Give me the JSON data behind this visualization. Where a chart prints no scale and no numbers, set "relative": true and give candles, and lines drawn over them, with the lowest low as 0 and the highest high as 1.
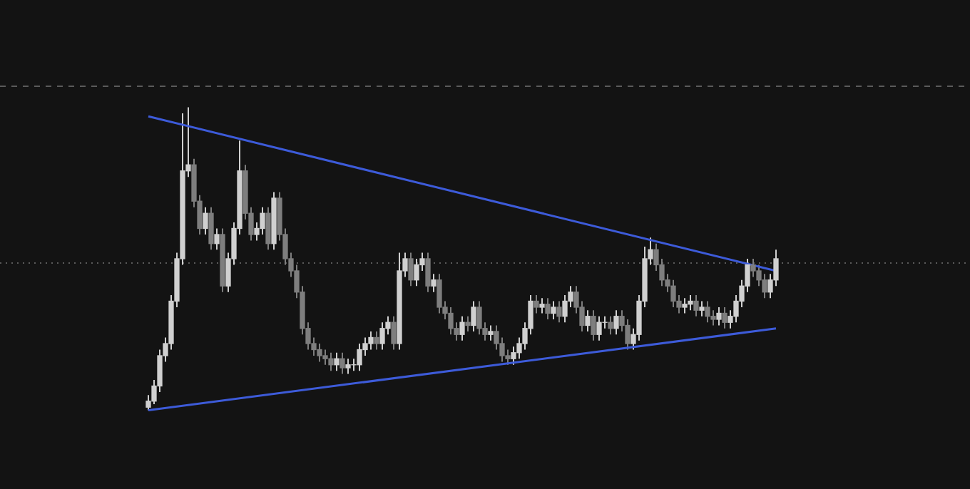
{
  "chart_data": {
    "type": "candlestick",
    "relative": true,
    "legend": false,
    "tick_labels": false,
    "grid": false,
    "colors": [
      "#d0d0d0",
      "#d0d0d0",
      "#d0d0d0",
      "#d0d0d0",
      "#d0d0d0",
      "#d0d0d0",
      "#d0d0d0",
      "#d0d0d0",
      "#7e7e7e",
      "#7e7e7e",
      "#d0d0d0",
      "#7e7e7e",
      "#d0d0d0",
      "#7e7e7e",
      "#d0d0d0",
      "#d0d0d0",
      "#d0d0d0",
      "#7e7e7e",
      "#7e7e7e",
      "#d0d0d0",
      "#d0d0d0",
      "#7e7e7e",
      "#d0d0d0",
      "#7e7e7e",
      "#7e7e7e",
      "#7e7e7e",
      "#7e7e7e",
      "#7e7e7e",
      "#7e7e7e",
      "#7e7e7e",
      "#7e7e7e",
      "#7e7e7e",
      "#7e7e7e",
      "#d0d0d0",
      "#7e7e7e",
      "#d0d0d0",
      "#d0d0d0",
      "#d0d0d0",
      "#d0d0d0",
      "#d0d0d0",
      "#7e7e7e",
      "#d0d0d0",
      "#d0d0d0",
      "#7e7e7e",
      "#d0d0d0",
      "#d0d0d0",
      "#7e7e7e",
      "#d0d0d0",
      "#d0d0d0",
      "#7e7e7e",
      "#d0d0d0",
      "#7e7e7e",
      "#7e7e7e",
      "#7e7e7e",
      "#7e7e7e",
      "#d0d0d0",
      "#7e7e7e",
      "#d0d0d0",
      "#7e7e7e",
      "#7e7e7e",
      "#d0d0d0",
      "#7e7e7e",
      "#7e7e7e",
      "#7e7e7e",
      "#d0d0d0",
      "#d0d0d0",
      "#d0d0d0",
      "#d0d0d0",
      "#7e7e7e",
      "#d0d0d0",
      "#7e7e7e",
      "#d0d0d0",
      "#7e7e7e",
      "#d0d0d0",
      "#d0d0d0",
      "#7e7e7e",
      "#7e7e7e",
      "#d0d0d0",
      "#7e7e7e",
      "#d0d0d0",
      "#d0d0d0",
      "#7e7e7e",
      "#d0d0d0",
      "#7e7e7e",
      "#7e7e7e",
      "#d0d0d0",
      "#d0d0d0",
      "#d0d0d0",
      "#d0d0d0",
      "#7e7e7e",
      "#7e7e7e",
      "#7e7e7e",
      "#7e7e7e",
      "#7e7e7e",
      "#d0d0d0",
      "#d0d0d0",
      "#7e7e7e",
      "#d0d0d0",
      "#7e7e7e",
      "#7e7e7e",
      "#d0d0d0",
      "#7e7e7e",
      "#d0d0d0",
      "#d0d0d0",
      "#d0d0d0",
      "#d0d0d0",
      "#7e7e7e",
      "#7e7e7e",
      "#7e7e7e",
      "#d0d0d0",
      "#d0d0d0"
    ],
    "series": [
      {
        "type": "line",
        "color": "#3d5bd9",
        "values": [
          0.97,
          null,
          null,
          null,
          null,
          null,
          null,
          null,
          null,
          null,
          null,
          null,
          null,
          null,
          null,
          null,
          null,
          null,
          null,
          null,
          null,
          null,
          null,
          null,
          null,
          null,
          null,
          null,
          null,
          null,
          null,
          null,
          null,
          null,
          null,
          null,
          null,
          null,
          null,
          null,
          null,
          null,
          null,
          null,
          null,
          null,
          null,
          null,
          null,
          null,
          null,
          null,
          null,
          null,
          null,
          null,
          null,
          null,
          null,
          null,
          null,
          null,
          null,
          null,
          null,
          null,
          null,
          null,
          null,
          null,
          null,
          null,
          null,
          null,
          null,
          null,
          null,
          null,
          null,
          null,
          null,
          null,
          null,
          null,
          null,
          null,
          null,
          null,
          null,
          null,
          null,
          null,
          null,
          null,
          null,
          null,
          null,
          null,
          null,
          null,
          null,
          null,
          null,
          null,
          null,
          null,
          null,
          null,
          null,
          null,
          0.46
        ]
      },
      {
        "type": "line",
        "color": "#3d5bd9",
        "values": [
          0,
          null,
          null,
          null,
          null,
          null,
          null,
          null,
          null,
          null,
          null,
          null,
          null,
          null,
          null,
          null,
          null,
          null,
          null,
          null,
          null,
          null,
          null,
          null,
          null,
          null,
          null,
          null,
          null,
          null,
          null,
          null,
          null,
          null,
          null,
          null,
          null,
          null,
          null,
          null,
          null,
          null,
          null,
          null,
          null,
          null,
          null,
          null,
          null,
          null,
          null,
          null,
          null,
          null,
          null,
          null,
          null,
          null,
          null,
          null,
          null,
          null,
          null,
          null,
          null,
          null,
          null,
          null,
          null,
          null,
          null,
          null,
          null,
          null,
          null,
          null,
          null,
          null,
          null,
          null,
          null,
          null,
          null,
          null,
          null,
          null,
          null,
          null,
          null,
          null,
          null,
          null,
          null,
          null,
          null,
          null,
          null,
          null,
          null,
          null,
          null,
          null,
          null,
          null,
          null,
          null,
          null,
          null,
          null,
          null,
          0.27
        ]
      }
    ],
    "ref_lines": [
      {
        "axis": "y",
        "value": 1.07,
        "color": "#5a5a5a",
        "line_style": "dashed"
      },
      {
        "axis": "y",
        "value": 0.49,
        "color": "#5a5a5a",
        "line_style": "dotted"
      }
    ],
    "categories": [
      null,
      null,
      null,
      null,
      null,
      null,
      null,
      null,
      null,
      null,
      null,
      null,
      null,
      null,
      null,
      null,
      null,
      null,
      null,
      null,
      null,
      null,
      null,
      null,
      null,
      null,
      null,
      null,
      null,
      null,
      null,
      null,
      null,
      null,
      null,
      null,
      null,
      null,
      null,
      null,
      null,
      null,
      null,
      null,
      null,
      null,
      null,
      null,
      null,
      null,
      null,
      null,
      null,
      null,
      null,
      null,
      null,
      null,
      null,
      null,
      null,
      null,
      null,
      null,
      null,
      null,
      null,
      null,
      null,
      null,
      null,
      null,
      null,
      null,
      null,
      null,
      null,
      null,
      null,
      null,
      null,
      null,
      null,
      null,
      null,
      null,
      null,
      null,
      null,
      null,
      null,
      null,
      null,
      null,
      null,
      null,
      null,
      null,
      null,
      null,
      null,
      null,
      null,
      null,
      null,
      null,
      null,
      null,
      null,
      null,
      null
    ],
    "ohlc": [
      [
        0.01,
        0.05,
        0,
        0.03
      ],
      [
        0.03,
        0.1,
        0.02,
        0.08
      ],
      [
        0.08,
        0.2,
        0.06,
        0.18
      ],
      [
        0.18,
        0.24,
        0.16,
        0.22
      ],
      [
        0.22,
        0.38,
        0.2,
        0.36
      ],
      [
        0.36,
        0.52,
        0.34,
        0.5
      ],
      [
        0.5,
        0.98,
        0.48,
        0.79
      ],
      [
        0.79,
        1,
        0.77,
        0.81
      ],
      [
        0.81,
        0.83,
        0.67,
        0.69
      ],
      [
        0.69,
        0.71,
        0.58,
        0.6
      ],
      [
        0.6,
        0.67,
        0.58,
        0.65
      ],
      [
        0.65,
        0.67,
        0.53,
        0.55
      ],
      [
        0.55,
        0.6,
        0.53,
        0.58
      ],
      [
        0.58,
        0.6,
        0.39,
        0.41
      ],
      [
        0.41,
        0.52,
        0.39,
        0.5
      ],
      [
        0.5,
        0.62,
        0.48,
        0.6
      ],
      [
        0.6,
        0.89,
        0.58,
        0.79
      ],
      [
        0.79,
        0.81,
        0.63,
        0.65
      ],
      [
        0.65,
        0.67,
        0.56,
        0.58
      ],
      [
        0.58,
        0.62,
        0.56,
        0.6
      ],
      [
        0.6,
        0.67,
        0.58,
        0.65
      ],
      [
        0.65,
        0.67,
        0.53,
        0.55
      ],
      [
        0.55,
        0.72,
        0.53,
        0.7
      ],
      [
        0.7,
        0.72,
        0.56,
        0.58
      ],
      [
        0.58,
        0.6,
        0.48,
        0.5
      ],
      [
        0.5,
        0.52,
        0.44,
        0.46
      ],
      [
        0.46,
        0.48,
        0.37,
        0.39
      ],
      [
        0.39,
        0.41,
        0.25,
        0.27
      ],
      [
        0.27,
        0.29,
        0.2,
        0.22
      ],
      [
        0.22,
        0.24,
        0.18,
        0.2
      ],
      [
        0.2,
        0.22,
        0.16,
        0.18
      ],
      [
        0.18,
        0.2,
        0.15,
        0.17
      ],
      [
        0.17,
        0.19,
        0.13,
        0.15
      ],
      [
        0.15,
        0.19,
        0.13,
        0.17
      ],
      [
        0.17,
        0.19,
        0.12,
        0.14
      ],
      [
        0.14,
        0.17,
        0.12,
        0.15
      ],
      [
        0.15,
        0.17,
        0.13,
        0.15
      ],
      [
        0.15,
        0.22,
        0.13,
        0.2
      ],
      [
        0.2,
        0.24,
        0.18,
        0.22
      ],
      [
        0.22,
        0.26,
        0.2,
        0.24
      ],
      [
        0.24,
        0.26,
        0.2,
        0.22
      ],
      [
        0.22,
        0.29,
        0.2,
        0.27
      ],
      [
        0.27,
        0.31,
        0.25,
        0.29
      ],
      [
        0.29,
        0.31,
        0.2,
        0.22
      ],
      [
        0.22,
        0.52,
        0.2,
        0.46
      ],
      [
        0.46,
        0.52,
        0.44,
        0.5
      ],
      [
        0.5,
        0.52,
        0.41,
        0.43
      ],
      [
        0.43,
        0.5,
        0.41,
        0.48
      ],
      [
        0.48,
        0.52,
        0.46,
        0.5
      ],
      [
        0.5,
        0.52,
        0.39,
        0.41
      ],
      [
        0.41,
        0.45,
        0.39,
        0.43
      ],
      [
        0.43,
        0.45,
        0.32,
        0.34
      ],
      [
        0.34,
        0.36,
        0.3,
        0.32
      ],
      [
        0.32,
        0.34,
        0.25,
        0.27
      ],
      [
        0.27,
        0.29,
        0.23,
        0.25
      ],
      [
        0.25,
        0.31,
        0.23,
        0.29
      ],
      [
        0.29,
        0.31,
        0.26,
        0.28
      ],
      [
        0.28,
        0.36,
        0.26,
        0.34
      ],
      [
        0.34,
        0.36,
        0.25,
        0.27
      ],
      [
        0.27,
        0.29,
        0.23,
        0.25
      ],
      [
        0.25,
        0.28,
        0.23,
        0.26
      ],
      [
        0.26,
        0.28,
        0.2,
        0.22
      ],
      [
        0.22,
        0.24,
        0.16,
        0.18
      ],
      [
        0.18,
        0.2,
        0.15,
        0.17
      ],
      [
        0.17,
        0.21,
        0.15,
        0.19
      ],
      [
        0.19,
        0.24,
        0.17,
        0.22
      ],
      [
        0.22,
        0.29,
        0.2,
        0.27
      ],
      [
        0.27,
        0.38,
        0.25,
        0.36
      ],
      [
        0.36,
        0.38,
        0.32,
        0.34
      ],
      [
        0.34,
        0.37,
        0.32,
        0.35
      ],
      [
        0.35,
        0.37,
        0.3,
        0.32
      ],
      [
        0.32,
        0.36,
        0.3,
        0.34
      ],
      [
        0.34,
        0.36,
        0.29,
        0.31
      ],
      [
        0.31,
        0.38,
        0.29,
        0.36
      ],
      [
        0.36,
        0.41,
        0.34,
        0.39
      ],
      [
        0.39,
        0.41,
        0.32,
        0.34
      ],
      [
        0.34,
        0.36,
        0.26,
        0.28
      ],
      [
        0.28,
        0.33,
        0.26,
        0.31
      ],
      [
        0.31,
        0.33,
        0.23,
        0.25
      ],
      [
        0.25,
        0.31,
        0.23,
        0.29
      ],
      [
        0.29,
        0.31,
        0.27,
        0.29
      ],
      [
        0.29,
        0.31,
        0.25,
        0.27
      ],
      [
        0.27,
        0.33,
        0.25,
        0.31
      ],
      [
        0.31,
        0.33,
        0.26,
        0.28
      ],
      [
        0.28,
        0.3,
        0.2,
        0.22
      ],
      [
        0.22,
        0.27,
        0.2,
        0.25
      ],
      [
        0.25,
        0.38,
        0.23,
        0.36
      ],
      [
        0.36,
        0.54,
        0.34,
        0.5
      ],
      [
        0.5,
        0.57,
        0.48,
        0.53
      ],
      [
        0.53,
        0.55,
        0.46,
        0.48
      ],
      [
        0.48,
        0.5,
        0.41,
        0.43
      ],
      [
        0.43,
        0.45,
        0.39,
        0.41
      ],
      [
        0.41,
        0.43,
        0.34,
        0.36
      ],
      [
        0.36,
        0.38,
        0.32,
        0.34
      ],
      [
        0.34,
        0.37,
        0.32,
        0.35
      ],
      [
        0.35,
        0.38,
        0.33,
        0.36
      ],
      [
        0.36,
        0.38,
        0.31,
        0.33
      ],
      [
        0.33,
        0.36,
        0.31,
        0.34
      ],
      [
        0.34,
        0.36,
        0.29,
        0.31
      ],
      [
        0.31,
        0.33,
        0.28,
        0.3
      ],
      [
        0.3,
        0.34,
        0.28,
        0.32
      ],
      [
        0.32,
        0.34,
        0.27,
        0.29
      ],
      [
        0.29,
        0.33,
        0.27,
        0.31
      ],
      [
        0.31,
        0.38,
        0.29,
        0.36
      ],
      [
        0.36,
        0.43,
        0.34,
        0.41
      ],
      [
        0.41,
        0.5,
        0.39,
        0.48
      ],
      [
        0.48,
        0.5,
        0.44,
        0.46
      ],
      [
        0.46,
        0.48,
        0.41,
        0.43
      ],
      [
        0.43,
        0.45,
        0.37,
        0.39
      ],
      [
        0.39,
        0.45,
        0.37,
        0.43
      ],
      [
        0.43,
        0.53,
        0.41,
        0.5
      ]
    ]
  }
}
